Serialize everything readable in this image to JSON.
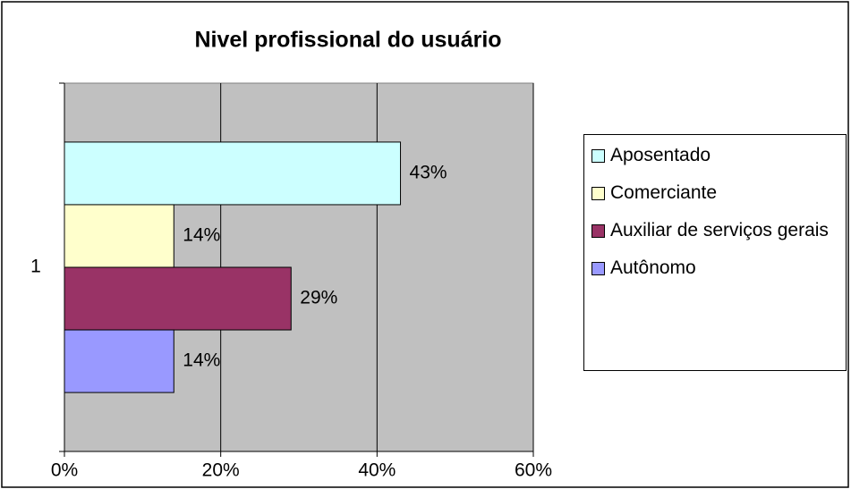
{
  "chart_data": {
    "type": "bar",
    "orientation": "horizontal",
    "title": "Nivel profissional do usuário",
    "categories": [
      "1"
    ],
    "series": [
      {
        "name": "Aposentado",
        "color": "#ccffff",
        "values": [
          43
        ],
        "value_labels": [
          "43%"
        ]
      },
      {
        "name": "Comerciante",
        "color": "#ffffcc",
        "values": [
          14
        ],
        "value_labels": [
          "14%"
        ]
      },
      {
        "name": "Auxiliar de serviços gerais",
        "color": "#993366",
        "values": [
          29
        ],
        "value_labels": [
          "29%"
        ]
      },
      {
        "name": "Autônomo",
        "color": "#9999ff",
        "values": [
          14
        ],
        "value_labels": [
          "14%"
        ]
      }
    ],
    "xlim": [
      0,
      60
    ],
    "xticks": [
      {
        "value": 0,
        "label": "0%"
      },
      {
        "value": 20,
        "label": "20%"
      },
      {
        "value": 40,
        "label": "40%"
      },
      {
        "value": 60,
        "label": "60%"
      }
    ],
    "grid": true,
    "plot_background": "#c0c0c0",
    "legend": "right"
  }
}
